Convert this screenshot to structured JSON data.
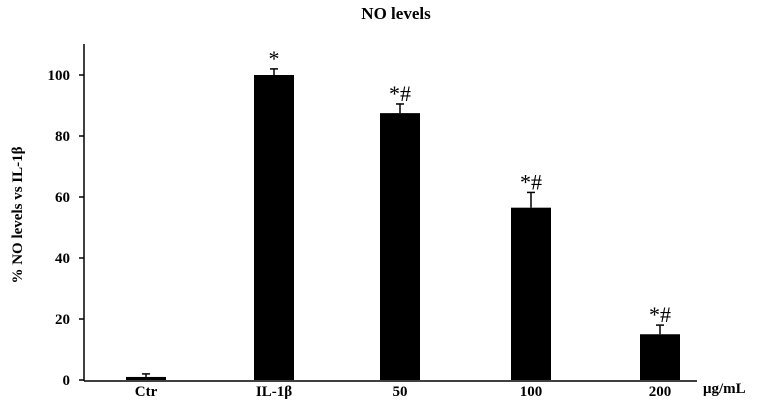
{
  "chart_data": {
    "type": "bar",
    "title": "NO levels",
    "ylabel": "% NO  levels vs IL-1β",
    "xlabel": "",
    "unit_label": "μg/mL",
    "categories": [
      "Ctr",
      "IL-1β",
      "50",
      "100",
      "200"
    ],
    "values": [
      1,
      100,
      87.5,
      56.5,
      15
    ],
    "errors": [
      1,
      2,
      3,
      5,
      3
    ],
    "annotations": [
      "",
      "*",
      "*#",
      "*#",
      "*#"
    ],
    "ylim": [
      0,
      110
    ],
    "yticks": [
      0,
      20,
      40,
      60,
      80,
      100
    ],
    "bar_color": "#000000",
    "grid": false
  }
}
